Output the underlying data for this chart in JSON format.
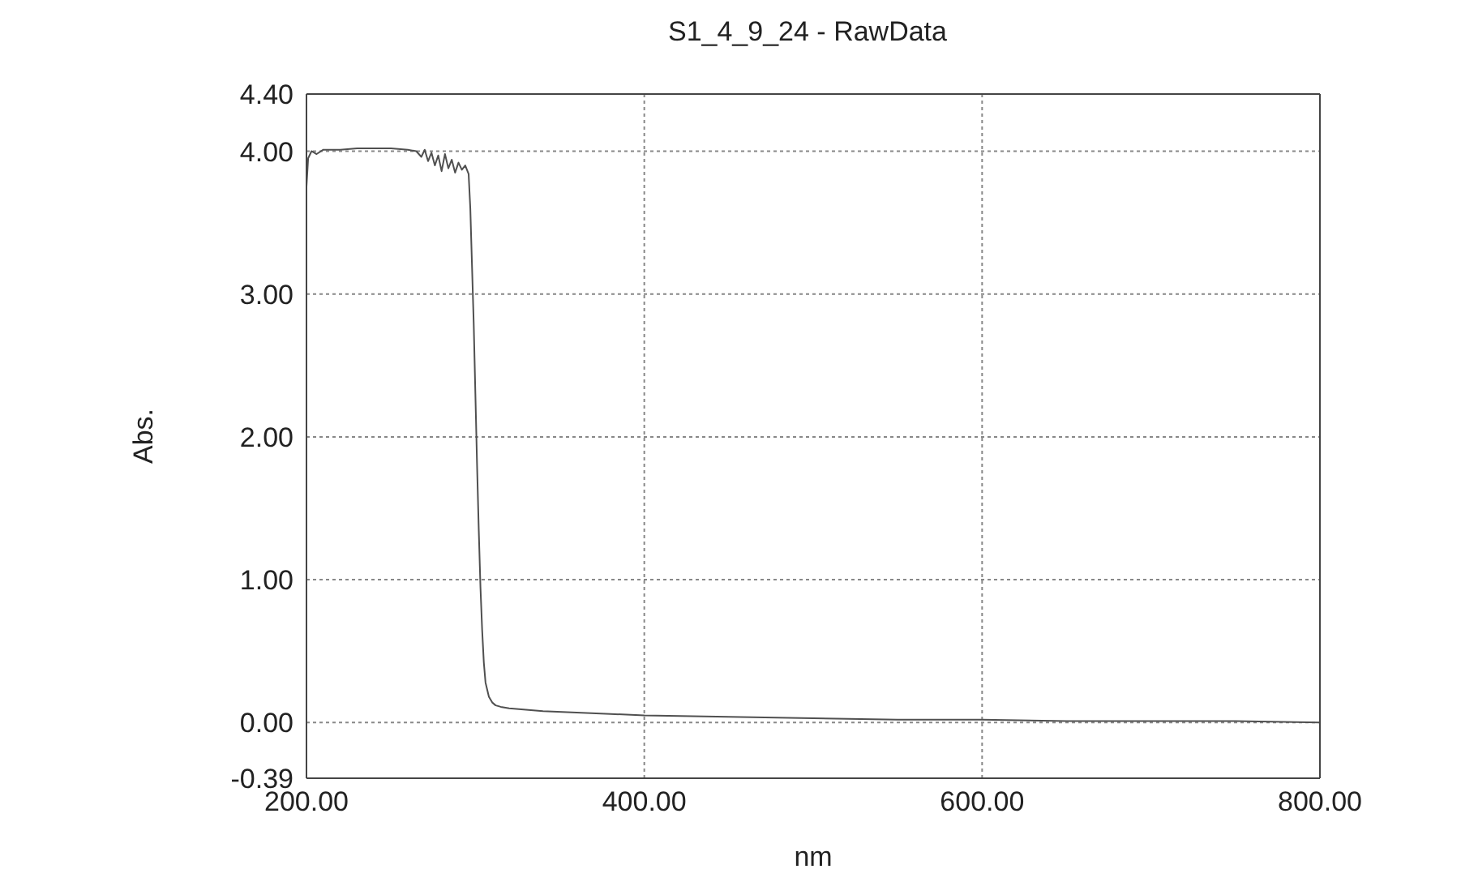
{
  "chart_data": {
    "type": "line",
    "title": "S1_4_9_24 - RawData",
    "xlabel": "nm",
    "ylabel": "Abs.",
    "x": [
      200,
      201,
      203,
      206,
      210,
      220,
      230,
      240,
      250,
      260,
      265,
      268,
      270,
      272,
      274,
      276,
      278,
      280,
      282,
      284,
      286,
      288,
      290,
      292,
      294,
      296,
      297,
      298,
      299,
      300,
      301,
      302,
      303,
      304,
      305,
      306,
      308,
      310,
      312,
      315,
      320,
      330,
      340,
      360,
      380,
      400,
      450,
      500,
      550,
      600,
      650,
      700,
      750,
      800
    ],
    "series": [
      {
        "color": "#505050",
        "values": [
          3.75,
          3.95,
          4.0,
          3.98,
          4.01,
          4.01,
          4.02,
          4.02,
          4.02,
          4.01,
          4.0,
          3.96,
          4.01,
          3.93,
          3.99,
          3.9,
          3.97,
          3.86,
          3.98,
          3.88,
          3.94,
          3.85,
          3.92,
          3.87,
          3.9,
          3.84,
          3.6,
          3.2,
          2.8,
          2.3,
          1.8,
          1.35,
          0.95,
          0.65,
          0.42,
          0.28,
          0.18,
          0.14,
          0.12,
          0.11,
          0.1,
          0.09,
          0.08,
          0.07,
          0.06,
          0.05,
          0.04,
          0.03,
          0.02,
          0.02,
          0.01,
          0.01,
          0.01,
          0.0
        ]
      }
    ],
    "xlim": [
      200,
      800
    ],
    "xticks": [
      {
        "value": 200,
        "label": "200.00"
      },
      {
        "value": 400,
        "label": "400.00"
      },
      {
        "value": 600,
        "label": "600.00"
      },
      {
        "value": 800,
        "label": "800.00"
      }
    ],
    "ylim": [
      -0.39,
      4.4
    ],
    "yticks": [
      {
        "value": -0.39,
        "label": "-0.39"
      },
      {
        "value": 0,
        "label": "0.00"
      },
      {
        "value": 1,
        "label": "1.00"
      },
      {
        "value": 2,
        "label": "2.00"
      },
      {
        "value": 3,
        "label": "3.00"
      },
      {
        "value": 4,
        "label": "4.00"
      },
      {
        "value": 4.4,
        "label": "4.40"
      }
    ],
    "grid": true,
    "marker": "none",
    "line_style": "solid",
    "legend": false
  }
}
